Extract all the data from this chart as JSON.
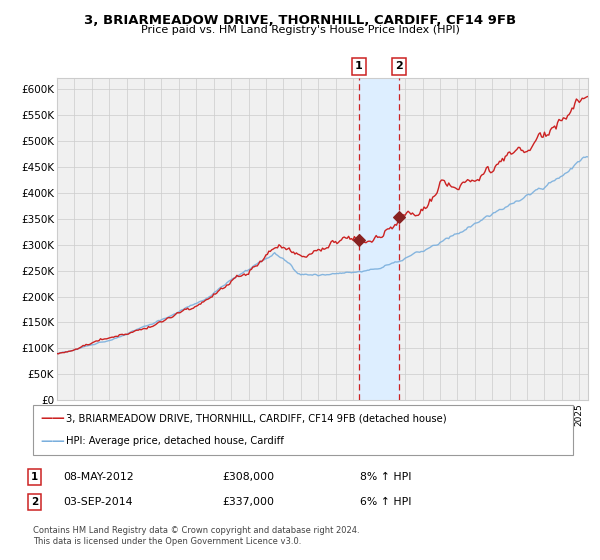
{
  "title": "3, BRIARMEADOW DRIVE, THORNHILL, CARDIFF, CF14 9FB",
  "subtitle": "Price paid vs. HM Land Registry's House Price Index (HPI)",
  "legend_line1": "3, BRIARMEADOW DRIVE, THORNHILL, CARDIFF, CF14 9FB (detached house)",
  "legend_line2": "HPI: Average price, detached house, Cardiff",
  "sale1_date": "08-MAY-2012",
  "sale1_price": 308000,
  "sale1_hpi": "8% ↑ HPI",
  "sale2_date": "03-SEP-2014",
  "sale2_price": 337000,
  "sale2_hpi": "6% ↑ HPI",
  "footer": "Contains HM Land Registry data © Crown copyright and database right 2024.\nThis data is licensed under the Open Government Licence v3.0.",
  "hpi_color": "#7aafdd",
  "price_color": "#cc2222",
  "sale_dot_color": "#882222",
  "highlight_color": "#ddeeff",
  "vline_color": "#cc2222",
  "background_color": "#f0f0f0",
  "grid_color": "#cccccc",
  "ylim": [
    0,
    620000
  ],
  "yticks": [
    0,
    50000,
    100000,
    150000,
    200000,
    250000,
    300000,
    350000,
    400000,
    450000,
    500000,
    550000,
    600000
  ],
  "start_year": 1995.0,
  "end_year": 2025.5,
  "sale1_x": 2012.35,
  "sale2_x": 2014.67
}
